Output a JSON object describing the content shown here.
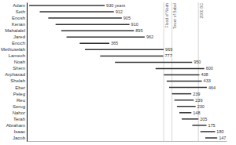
{
  "chart_data": {
    "type": "bar",
    "orientation": "horizontal",
    "categories": [
      "Adam",
      "Seth",
      "Enosh",
      "Kenan",
      "Mahalalel",
      "Jared",
      "Enoch",
      "Methuselah",
      "Lamech",
      "Noah",
      "Shem",
      "Arphaxad",
      "Shelah",
      "Eber",
      "Peleg",
      "Reu",
      "Serug",
      "Nahor",
      "Terah",
      "Abraham",
      "Isaac",
      "Jacob"
    ],
    "start": [
      0,
      130,
      235,
      325,
      395,
      460,
      622,
      687,
      874,
      1056,
      1556,
      1658,
      1693,
      1723,
      1757,
      1787,
      1819,
      1849,
      1878,
      2008,
      2108,
      2168
    ],
    "values": [
      930,
      912,
      905,
      910,
      895,
      962,
      365,
      969,
      777,
      950,
      600,
      438,
      433,
      464,
      239,
      239,
      230,
      148,
      205,
      175,
      180,
      147
    ],
    "value_labels": [
      "930 years",
      "912",
      "905",
      "910",
      "895",
      "962",
      "365",
      "969",
      "777",
      "950",
      "600",
      "438",
      "433",
      "464",
      "239",
      "239",
      "230",
      "148",
      "205",
      "175",
      "180",
      "147"
    ],
    "data_labels": true,
    "color": "#333333",
    "xlim": [
      -30,
      2430
    ],
    "tick_labels": "y",
    "events": [
      {
        "value": 1656,
        "label": "Flood of Noah"
      },
      {
        "value": 1758,
        "label": "Tower of Babel"
      },
      {
        "value": 2083,
        "label": "2000 BC"
      }
    ]
  }
}
